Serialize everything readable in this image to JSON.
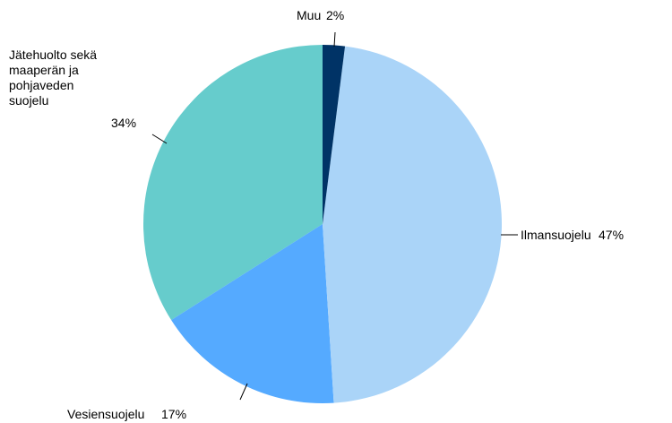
{
  "chart_data": {
    "type": "pie",
    "categories": [
      "Muu",
      "Ilmansuojelu",
      "Vesiensuojelu",
      "Jätehuolto sekä maaperän ja pohjaveden suojelu"
    ],
    "values": [
      2,
      47,
      17,
      34
    ],
    "value_labels": [
      "2%",
      "47%",
      "17%",
      "34%"
    ],
    "colors": [
      "#003366",
      "#aad4f8",
      "#55aaff",
      "#66cccc"
    ]
  }
}
